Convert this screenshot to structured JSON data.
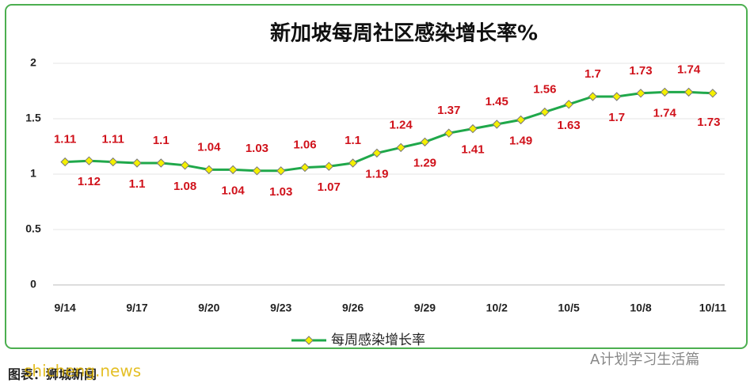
{
  "chart_data": {
    "type": "line",
    "title": "新加坡每周社区感染增长率%",
    "categories": [
      "9/14",
      null,
      null,
      "9/17",
      null,
      null,
      "9/20",
      null,
      null,
      "9/23",
      null,
      null,
      "9/26",
      null,
      null,
      "9/29",
      null,
      null,
      "10/2",
      null,
      null,
      "10/5",
      null,
      null,
      "10/8",
      null,
      null,
      "10/11"
    ],
    "series": [
      {
        "name": "每周感染增长率",
        "color": "#1fa84a",
        "values": [
          1.11,
          1.12,
          1.11,
          1.1,
          1.1,
          1.08,
          1.04,
          1.04,
          1.03,
          1.03,
          1.06,
          1.07,
          1.1,
          1.19,
          1.24,
          1.29,
          1.37,
          1.41,
          1.45,
          1.49,
          1.56,
          1.63,
          1.7,
          1.7,
          1.73,
          1.74,
          1.74,
          1.73
        ]
      }
    ],
    "ylim": [
      0,
      2
    ],
    "yticks": [
      0,
      0.5,
      1,
      1.5,
      2
    ],
    "grid": true,
    "legend": "bottom",
    "source": "图表：狮城新闻",
    "watermarks": [
      "shicheng.news",
      "A计划学习生活篇"
    ]
  }
}
